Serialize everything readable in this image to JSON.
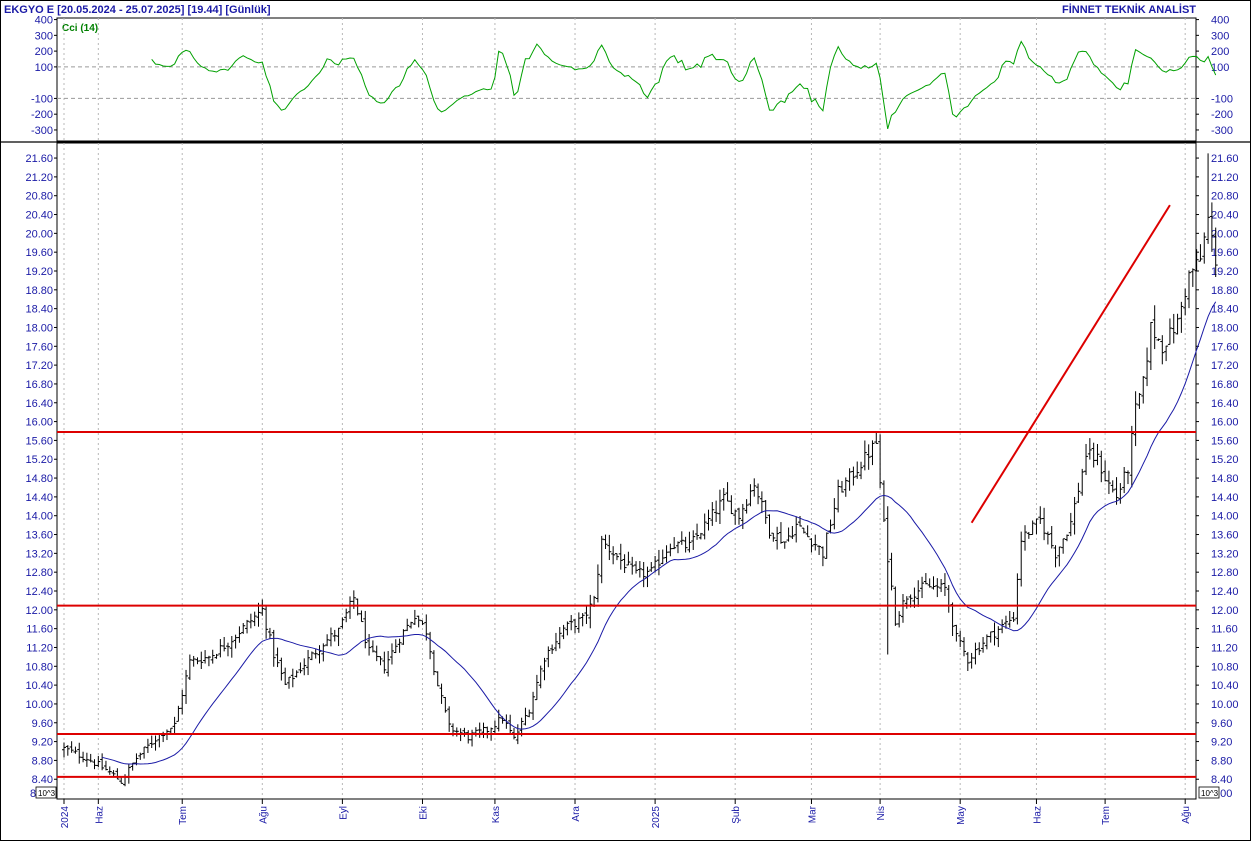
{
  "header": {
    "symbol_text": "EKGYO E  [20.05.2024 - 25.07.2025]  [19.44]  [Günlük]",
    "brand_text": "FİNNET TEKNİK ANALİST"
  },
  "cci_panel": {
    "indicator_label": "Cci (14)",
    "y_ticks": [
      "400",
      "300",
      "200",
      "100",
      "-100",
      "-200",
      "-300"
    ],
    "y_tick_values": [
      400,
      300,
      200,
      100,
      -100,
      -200,
      -300
    ],
    "dashed_levels": [
      100,
      -100
    ],
    "ylim": [
      -370,
      410
    ],
    "line_color": "#00a000"
  },
  "chart_data": {
    "type": "ohlc",
    "title": "",
    "xlabel": "",
    "ylabel": "",
    "ylim": [
      7.98,
      21.92
    ],
    "y_ticks": [
      21.6,
      21.2,
      20.8,
      20.4,
      20.0,
      19.6,
      19.2,
      18.8,
      18.4,
      18.0,
      17.6,
      17.2,
      16.8,
      16.4,
      16.0,
      15.6,
      15.2,
      14.8,
      14.4,
      14.0,
      13.6,
      13.2,
      12.8,
      12.4,
      12.0,
      11.6,
      11.2,
      10.8,
      10.4,
      10.0,
      9.6,
      9.2,
      8.8,
      8.4
    ],
    "y_tick_labels": [
      "21.60",
      "21.20",
      "20.80",
      "20.40",
      "20.00",
      "19.60",
      "19.20",
      "18.80",
      "18.40",
      "18.00",
      "17.60",
      "17.20",
      "16.80",
      "16.40",
      "16.00",
      "15.60",
      "15.20",
      "14.80",
      "14.40",
      "14.00",
      "13.60",
      "13.20",
      "12.80",
      "12.40",
      "12.00",
      "11.60",
      "11.20",
      "10.80",
      "10.40",
      "10.00",
      "9.60",
      "9.20",
      "8.80",
      "8.40"
    ],
    "y_bottom_label_left": "8",
    "y_bottom_label_right": "8.00",
    "scale_label": "10^3",
    "x_labels": [
      {
        "label": "2024",
        "day": 0
      },
      {
        "label": "Haz",
        "day": 9
      },
      {
        "label": "Tem",
        "day": 31
      },
      {
        "label": "Ağu",
        "day": 52
      },
      {
        "label": "Eyl",
        "day": 73
      },
      {
        "label": "Eki",
        "day": 94
      },
      {
        "label": "Kas",
        "day": 113
      },
      {
        "label": "Ara",
        "day": 134
      },
      {
        "label": "2025",
        "day": 155
      },
      {
        "label": "Şub",
        "day": 176
      },
      {
        "label": "Mar",
        "day": 196
      },
      {
        "label": "Nis",
        "day": 214
      },
      {
        "label": "May",
        "day": 235
      },
      {
        "label": "Haz",
        "day": 255
      },
      {
        "label": "Tem",
        "day": 273
      },
      {
        "label": "Ağu",
        "day": 294
      }
    ],
    "day_count": 295,
    "last_close": 19.44,
    "horizontal_levels": [
      15.78,
      12.09,
      9.36,
      8.45
    ],
    "trendline": {
      "from": {
        "day": 238,
        "value": 13.85
      },
      "to": {
        "day": 290,
        "value": 20.6
      }
    },
    "ma_color": "#1a1aa6",
    "level_color": "#dd0000",
    "bar_color": "#000000",
    "price_anchors": [
      {
        "day": 0,
        "value": 9.05
      },
      {
        "day": 6,
        "value": 8.85
      },
      {
        "day": 12,
        "value": 8.55
      },
      {
        "day": 15,
        "value": 8.35
      },
      {
        "day": 19,
        "value": 8.85
      },
      {
        "day": 25,
        "value": 9.35
      },
      {
        "day": 29,
        "value": 9.55
      },
      {
        "day": 33,
        "value": 10.9
      },
      {
        "day": 38,
        "value": 11.0
      },
      {
        "day": 43,
        "value": 11.3
      },
      {
        "day": 48,
        "value": 11.7
      },
      {
        "day": 52,
        "value": 12.0
      },
      {
        "day": 55,
        "value": 11.05
      },
      {
        "day": 58,
        "value": 10.4
      },
      {
        "day": 63,
        "value": 10.85
      },
      {
        "day": 68,
        "value": 11.3
      },
      {
        "day": 72,
        "value": 11.55
      },
      {
        "day": 76,
        "value": 12.25
      },
      {
        "day": 80,
        "value": 11.1
      },
      {
        "day": 84,
        "value": 10.8
      },
      {
        "day": 88,
        "value": 11.4
      },
      {
        "day": 92,
        "value": 11.9
      },
      {
        "day": 95,
        "value": 11.55
      },
      {
        "day": 98,
        "value": 10.4
      },
      {
        "day": 101,
        "value": 9.5
      },
      {
        "day": 106,
        "value": 9.3
      },
      {
        "day": 111,
        "value": 9.45
      },
      {
        "day": 115,
        "value": 9.7
      },
      {
        "day": 118,
        "value": 9.25
      },
      {
        "day": 122,
        "value": 9.9
      },
      {
        "day": 126,
        "value": 11.0
      },
      {
        "day": 131,
        "value": 11.6
      },
      {
        "day": 136,
        "value": 11.8
      },
      {
        "day": 139,
        "value": 12.2
      },
      {
        "day": 141,
        "value": 13.45
      },
      {
        "day": 146,
        "value": 13.05
      },
      {
        "day": 150,
        "value": 12.75
      },
      {
        "day": 154,
        "value": 12.8
      },
      {
        "day": 159,
        "value": 13.4
      },
      {
        "day": 164,
        "value": 13.35
      },
      {
        "day": 169,
        "value": 13.9
      },
      {
        "day": 173,
        "value": 14.35
      },
      {
        "day": 177,
        "value": 14.0
      },
      {
        "day": 181,
        "value": 14.7
      },
      {
        "day": 185,
        "value": 13.7
      },
      {
        "day": 189,
        "value": 13.45
      },
      {
        "day": 192,
        "value": 13.8
      },
      {
        "day": 197,
        "value": 13.4
      },
      {
        "day": 199,
        "value": 13.2
      },
      {
        "day": 203,
        "value": 14.5
      },
      {
        "day": 208,
        "value": 15.0
      },
      {
        "day": 213,
        "value": 15.55
      },
      {
        "day": 215,
        "value": 13.8
      },
      {
        "day": 218,
        "value": 11.8
      },
      {
        "day": 221,
        "value": 12.3
      },
      {
        "day": 226,
        "value": 12.5
      },
      {
        "day": 231,
        "value": 12.45
      },
      {
        "day": 234,
        "value": 11.4
      },
      {
        "day": 237,
        "value": 10.95
      },
      {
        "day": 242,
        "value": 11.4
      },
      {
        "day": 246,
        "value": 11.65
      },
      {
        "day": 249,
        "value": 11.85
      },
      {
        "day": 251,
        "value": 13.5
      },
      {
        "day": 256,
        "value": 13.9
      },
      {
        "day": 260,
        "value": 13.2
      },
      {
        "day": 264,
        "value": 13.85
      },
      {
        "day": 268,
        "value": 15.3
      },
      {
        "day": 271,
        "value": 15.2
      },
      {
        "day": 273,
        "value": 14.8
      },
      {
        "day": 276,
        "value": 14.4
      },
      {
        "day": 279,
        "value": 15.0
      },
      {
        "day": 281,
        "value": 16.25
      },
      {
        "day": 283,
        "value": 16.8
      },
      {
        "day": 285,
        "value": 18.0
      },
      {
        "day": 288,
        "value": 17.6
      },
      {
        "day": 292,
        "value": 18.1
      },
      {
        "day": 295,
        "value": 19.1
      },
      {
        "day": 298,
        "value": 19.45
      },
      {
        "day": 300,
        "value": 20.3
      },
      {
        "day": 302,
        "value": 19.44
      }
    ],
    "ma_period": 20,
    "cci_period": 14
  }
}
